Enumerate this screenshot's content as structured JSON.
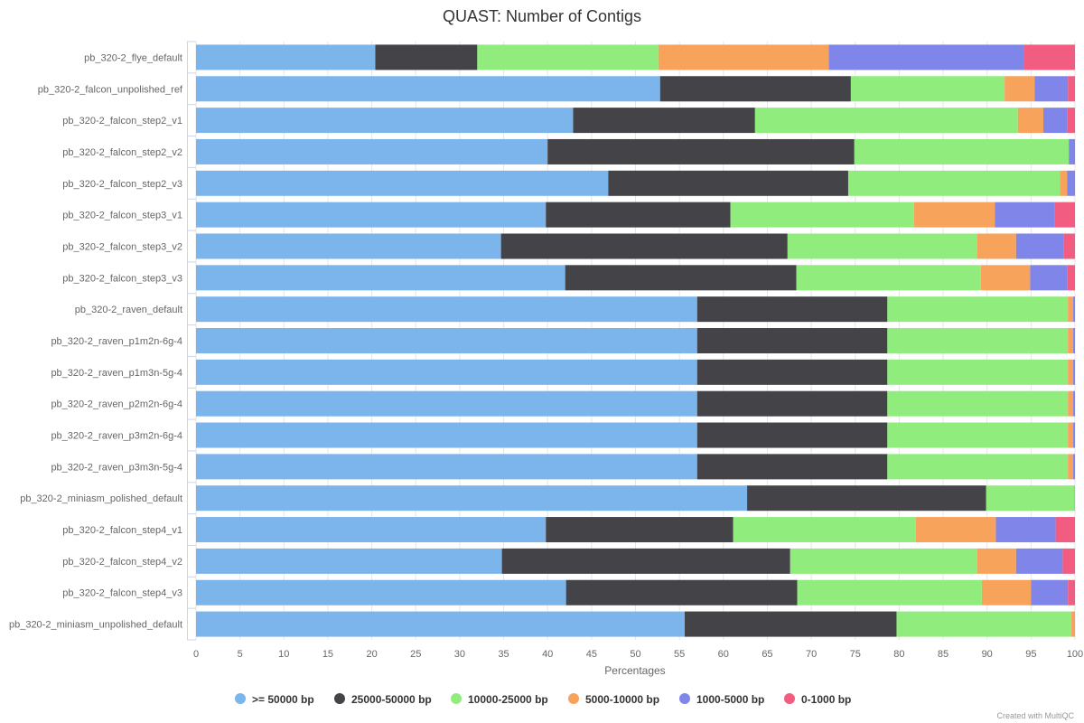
{
  "chart_data": {
    "type": "bar",
    "orientation": "horizontal",
    "stacked": true,
    "title": "QUAST: Number of Contigs",
    "xlabel": "Percentages",
    "ylabel": "",
    "xlim": [
      0,
      100
    ],
    "x_ticks": [
      "0",
      "5",
      "10",
      "15",
      "20",
      "25",
      "30",
      "35",
      "40",
      "45",
      "50",
      "55",
      "60",
      "65",
      "70",
      "75",
      "80",
      "85",
      "90",
      "95",
      "100"
    ],
    "grid": true,
    "legend_position": "bottom",
    "credit": "Created with MultiQC",
    "categories": [
      "pb_320-2_flye_default",
      "pb_320-2_falcon_unpolished_ref",
      "pb_320-2_falcon_step2_v1",
      "pb_320-2_falcon_step2_v2",
      "pb_320-2_falcon_step2_v3",
      "pb_320-2_falcon_step3_v1",
      "pb_320-2_falcon_step3_v2",
      "pb_320-2_falcon_step3_v3",
      "pb_320-2_raven_default",
      "pb_320-2_raven_p1m2n-6g-4",
      "pb_320-2_raven_p1m3n-5g-4",
      "pb_320-2_raven_p2m2n-6g-4",
      "pb_320-2_raven_p3m2n-6g-4",
      "pb_320-2_raven_p3m3n-5g-4",
      "pb_320-2_miniasm_polished_default",
      "pb_320-2_falcon_step4_v1",
      "pb_320-2_falcon_step4_v2",
      "pb_320-2_falcon_step4_v3",
      "pb_320-2_miniasm_unpolished_default"
    ],
    "series": [
      {
        "name": ">= 50000 bp",
        "color": "#7cb5ec",
        "values": [
          20.4,
          52.8,
          42.9,
          40.0,
          46.9,
          39.8,
          34.7,
          42.0,
          56.9,
          56.9,
          56.9,
          56.9,
          56.9,
          56.9,
          62.7,
          39.8,
          34.8,
          42.1,
          55.6
        ]
      },
      {
        "name": "25000-50000 bp",
        "color": "#434348",
        "values": [
          11.6,
          21.7,
          20.7,
          34.9,
          27.3,
          21.0,
          32.6,
          26.3,
          21.6,
          21.6,
          21.6,
          21.6,
          21.6,
          21.6,
          27.2,
          21.3,
          32.8,
          26.3,
          24.1
        ]
      },
      {
        "name": "10000-25000 bp",
        "color": "#90ed7d",
        "values": [
          20.6,
          17.5,
          29.9,
          24.4,
          24.1,
          20.9,
          21.6,
          21.0,
          20.5,
          20.5,
          20.5,
          20.5,
          20.5,
          20.5,
          10.0,
          20.8,
          21.3,
          21.0,
          19.9
        ]
      },
      {
        "name": "5000-10000 bp",
        "color": "#f7a35c",
        "values": [
          19.4,
          3.4,
          2.9,
          0.0,
          0.8,
          9.2,
          4.4,
          5.6,
          0.6,
          0.6,
          0.6,
          0.6,
          0.6,
          0.6,
          0.1,
          9.1,
          4.4,
          5.6,
          0.4
        ]
      },
      {
        "name": "1000-5000 bp",
        "color": "#8085e9",
        "values": [
          22.2,
          3.8,
          2.7,
          0.6,
          0.8,
          6.8,
          5.4,
          4.2,
          0.2,
          0.2,
          0.2,
          0.2,
          0.2,
          0.2,
          0.0,
          6.8,
          5.3,
          4.2,
          0.0
        ]
      },
      {
        "name": "0-1000 bp",
        "color": "#f15c80",
        "values": [
          5.8,
          0.8,
          0.9,
          0.1,
          0.1,
          2.3,
          1.3,
          0.9,
          0.0,
          0.0,
          0.0,
          0.0,
          0.0,
          0.0,
          0.0,
          2.2,
          1.4,
          0.8,
          0.0
        ]
      }
    ]
  }
}
